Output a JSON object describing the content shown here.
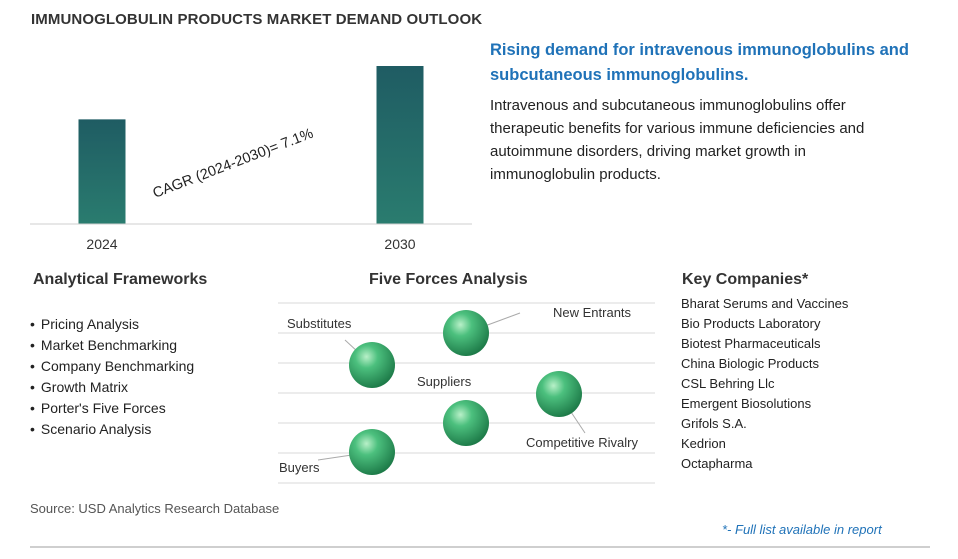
{
  "page_title": "IMMUNOGLOBULIN PRODUCTS MARKET DEMAND OUTLOOK",
  "headline": "Rising demand for intravenous immunoglobulins and subcutaneous immunoglobulins.",
  "description": "Intravenous and subcutaneous immunoglobulins offer therapeutic benefits for various immune deficiencies and autoimmune disorders, driving market growth in immunoglobulin products.",
  "colors": {
    "bar_top": "#1f5c63",
    "bar_bottom": "#2a7c6f",
    "headline": "#1f72b8",
    "sphere": "#3fae6f"
  },
  "chart_data": {
    "type": "bar",
    "categories": [
      "2024",
      "2030"
    ],
    "values": [
      1.0,
      1.51
    ],
    "title": "",
    "annotation": "CAGR (2024-2030)=  7.1%",
    "cagr_percent": 7.1,
    "grid": false,
    "legend": "none"
  },
  "frameworks": {
    "title": "Analytical Frameworks",
    "items": [
      "Pricing Analysis",
      "Market Benchmarking",
      "Company Benchmarking",
      "Growth Matrix",
      "Porter's Five Forces",
      "Scenario Analysis"
    ]
  },
  "five_forces": {
    "title": "Five Forces Analysis",
    "labels": {
      "substitutes": "Substitutes",
      "new_entrants": "New Entrants",
      "suppliers": "Suppliers",
      "competitive_rivalry": "Competitive Rivalry",
      "buyers": "Buyers"
    }
  },
  "companies": {
    "title": "Key Companies*",
    "items": [
      "Bharat Serums and Vaccines",
      "Bio Products Laboratory",
      "Biotest Pharmaceuticals",
      "China Biologic Products",
      "CSL Behring Llc",
      "Emergent Biosolutions",
      "Grifols S.A.",
      "Kedrion",
      "Octapharma"
    ]
  },
  "source": "Source: USD Analytics Research Database",
  "footnote": "*- Full list available in report"
}
